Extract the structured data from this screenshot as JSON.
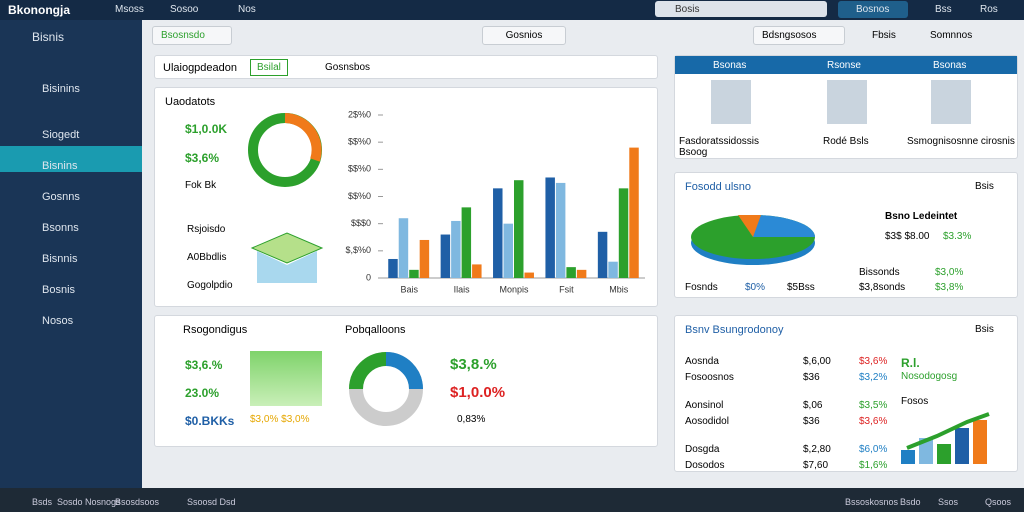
{
  "topbar": {
    "brand": "Bkonongja",
    "items": [
      "Msoss",
      "Sosoo",
      "Nos"
    ],
    "search": "Bosis",
    "user": "Bosnos",
    "extra": [
      "Bss",
      "Ros"
    ]
  },
  "sidebar": {
    "title": "Bisnis",
    "items": [
      "Bisinins",
      "Siogedt",
      "Bisnins",
      "Gosnns",
      "Bsonns",
      "Bisnnis",
      "Bosnis",
      "Nosos"
    ]
  },
  "toolbar": {
    "left": "Bsosnsdo",
    "center": "Gosnios",
    "right": [
      "Bdsngsosos",
      "Fbsis",
      "Somnnos"
    ]
  },
  "header_panel": {
    "title": "Ulaiogpdeadon",
    "button": "Bsilal",
    "tab": "Gosnsbos"
  },
  "overview": {
    "title": "Uaodatots",
    "stats": [
      "$1,0.0K",
      "$3,6%",
      "Fok Bk"
    ],
    "items": [
      "Rsjoisdo",
      "A0Bbdlis",
      "Gogolpdio"
    ]
  },
  "chart_data": {
    "type": "bar",
    "categories": [
      "Bais",
      "Ilais",
      "Monpis",
      "Fsit",
      "Mbis"
    ],
    "series": [
      {
        "color": "#1f5fa6",
        "values": [
          0.7,
          1.6,
          3.3,
          3.7,
          1.7
        ]
      },
      {
        "color": "#7fb8e0",
        "values": [
          2.2,
          2.1,
          2.0,
          3.5,
          0.6
        ]
      },
      {
        "color": "#2ca02c",
        "values": [
          0.3,
          2.6,
          3.6,
          0.4,
          3.3
        ]
      },
      {
        "color": "#f07a1a",
        "values": [
          1.4,
          0.5,
          0.2,
          0.3,
          4.8
        ]
      }
    ],
    "ylim": [
      0,
      6
    ],
    "yticks": [
      0,
      {
        "value": 1,
        "label": "$,$%0"
      },
      {
        "value": 2,
        "label": "$$$0"
      },
      {
        "value": 3,
        "label": "$$%0"
      },
      {
        "value": 4,
        "label": "$$%0"
      },
      {
        "value": 5,
        "label": "$$%0"
      },
      {
        "value": 6,
        "label": "2$%0"
      }
    ]
  },
  "progress": {
    "title": "Rsogondigus",
    "subtitle": "Pobqalloons",
    "stats": [
      "$3,6.%",
      "23.0%",
      "$0.BKKs"
    ],
    "bar_label": "$3,0%  $3,0%",
    "right_stats": [
      "$3,8.%",
      "$1,0.0%",
      "0,83%"
    ]
  },
  "team": {
    "headers": [
      "Bsonas",
      "Rsonse",
      "Bsonas"
    ],
    "people": [
      "Fasdoratssidossis Bsoog",
      "Rodé Bsls",
      "Ssmognisosnne cirosnis"
    ]
  },
  "forecast": {
    "title": "Fosodd ulsno",
    "menu": "Bsis",
    "person": "Bsno Ledeintet",
    "person_sub": "$3$ $8.00",
    "person_val": "$3.3%",
    "legend": [
      [
        "Bissonds",
        "$3,0%"
      ],
      [
        "$3,8sonds",
        "$3,8%"
      ]
    ],
    "foot": [
      "Fosnds",
      "$0%",
      "$5Bss"
    ]
  },
  "finance": {
    "title": "Bsnv Bsungrodonoy",
    "menu": "Bsis",
    "rows": [
      [
        "Aosnda",
        "$,6,00",
        "$3,6%"
      ],
      [
        "Fosoosnos",
        "$36",
        "$3,2%"
      ],
      [
        "Aonsinol",
        "$,06",
        "$3,5%"
      ],
      [
        "Aosodidol",
        "$36",
        "$3,6%"
      ],
      [
        "Dosgda",
        "$,2,80",
        "$6,0%"
      ],
      [
        "Dosodos",
        "$7,60",
        "$1,6%"
      ]
    ],
    "side": [
      "R.l.",
      "Nosodogosg",
      "Fosos"
    ]
  },
  "footer": {
    "left": [
      "Bsds",
      "Sosdo Nosnogs",
      "Bsosdsoos",
      "Ssoosd Dsd"
    ],
    "right": [
      "Bssoskosnos",
      "Bsdo",
      "Ssos",
      "Qsoos"
    ]
  }
}
